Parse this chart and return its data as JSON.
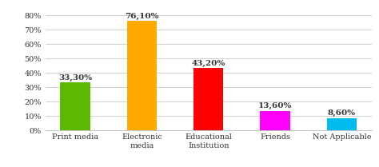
{
  "categories": [
    "Print media",
    "Electronic\nmedia",
    "Educational\nInstitution",
    "Friends",
    "Not Applicable"
  ],
  "values": [
    33.3,
    76.1,
    43.2,
    13.6,
    8.6
  ],
  "labels": [
    "33,30%",
    "76,10%",
    "43,20%",
    "13,60%",
    "8,60%"
  ],
  "bar_colors": [
    "#5cb800",
    "#ffaa00",
    "#ff0000",
    "#ff00ff",
    "#00bbee"
  ],
  "ylim": [
    0,
    85
  ],
  "yticks": [
    0,
    10,
    20,
    30,
    40,
    50,
    60,
    70,
    80
  ],
  "ytick_labels": [
    "0%",
    "10%",
    "20%",
    "30%",
    "40%",
    "50%",
    "60%",
    "70%",
    "80%"
  ],
  "background_color": "#ffffff",
  "grid_color": "#d0d0d0",
  "label_fontsize": 7.5,
  "tick_fontsize": 7.0,
  "bar_width": 0.45
}
